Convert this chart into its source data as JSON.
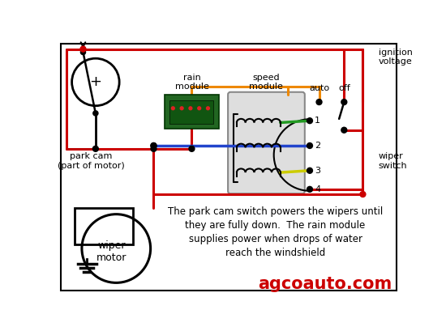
{
  "bg_color": "#ffffff",
  "watermark": "agcoauto.com",
  "watermark_color": "#cc0000",
  "description_lines": [
    "The park cam switch powers the wipers until",
    "they are fully down.  The rain module",
    "supplies power when drops of water",
    "reach the windshield"
  ],
  "wire_red": "#cc0000",
  "wire_green": "#229922",
  "wire_blue": "#2244cc",
  "wire_yellow": "#cccc00",
  "wire_orange": "#ee8800",
  "wire_black": "#000000"
}
